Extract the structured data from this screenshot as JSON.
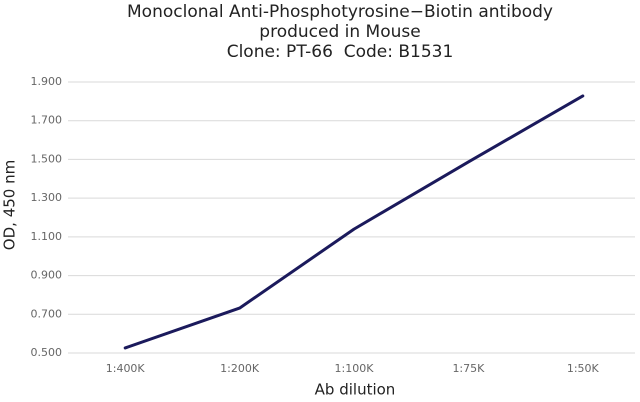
{
  "chart_data": {
    "type": "line",
    "title": [
      "Monoclonal Anti-Phosphotyrosine−Biotin antibody",
      "produced in Mouse",
      "Clone: PT-66  Code: B1531"
    ],
    "x_label": "Ab dilution",
    "y_label": "OD, 450 nm",
    "categories": [
      "1:400K",
      "1:200K",
      "1:100K",
      "1:75K",
      "1:50K"
    ],
    "series": [
      {
        "name": "OD",
        "color": "#1b1a5c",
        "values": [
          0.526,
          0.732,
          1.14,
          1.487,
          1.828
        ]
      }
    ],
    "ylim": [
      0.5,
      1.9
    ],
    "yticks": [
      {
        "value": 0.5,
        "label": "0.500"
      },
      {
        "value": 0.7,
        "label": "0.700"
      },
      {
        "value": 0.9,
        "label": "0.900"
      },
      {
        "value": 1.1,
        "label": "1.100"
      },
      {
        "value": 1.3,
        "label": "1.300"
      },
      {
        "value": 1.5,
        "label": "1.500"
      },
      {
        "value": 1.7,
        "label": "1.700"
      },
      {
        "value": 1.9,
        "label": "1.900"
      }
    ],
    "grid": true
  }
}
